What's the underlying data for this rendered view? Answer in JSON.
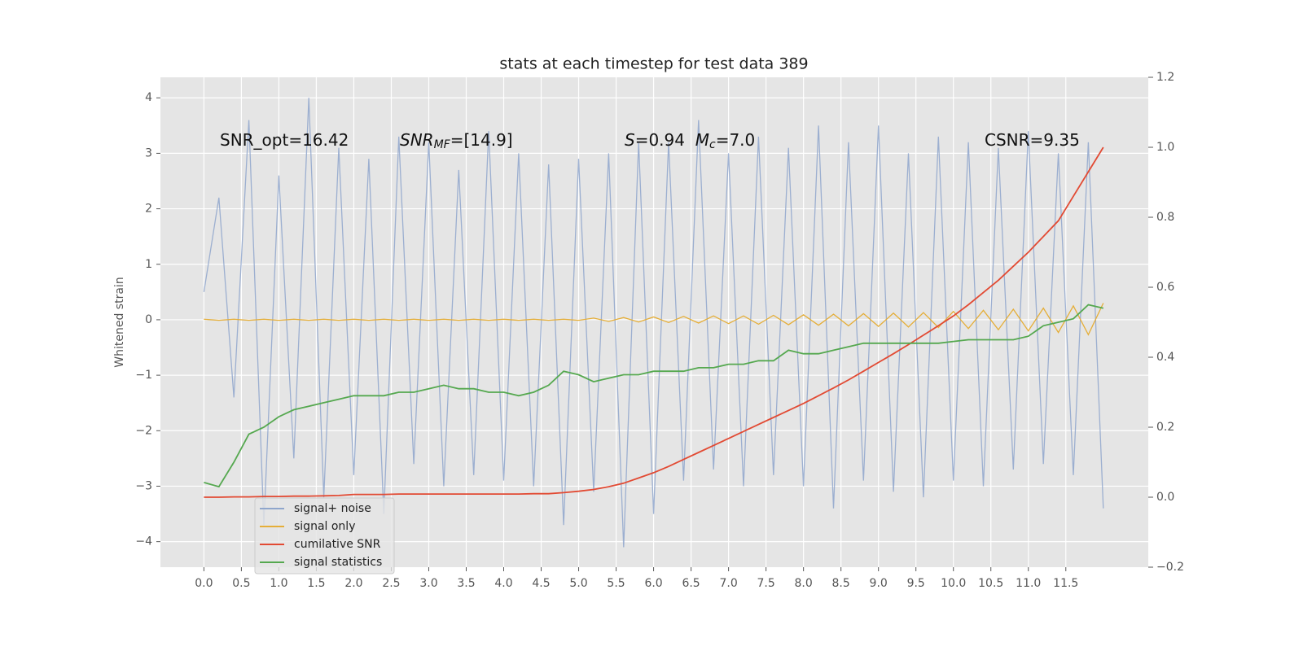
{
  "chart_data": {
    "type": "line",
    "title": "stats at each timestep for test data 389",
    "y_label": "Whitened strain",
    "x": [
      0,
      0.2,
      0.4,
      0.6,
      0.8,
      1.0,
      1.2,
      1.4,
      1.6,
      1.8,
      2.0,
      2.2,
      2.4,
      2.6,
      2.8,
      3.0,
      3.2,
      3.4,
      3.6,
      3.8,
      4.0,
      4.2,
      4.4,
      4.6,
      4.8,
      5.0,
      5.2,
      5.4,
      5.6,
      5.8,
      6.0,
      6.2,
      6.4,
      6.6,
      6.8,
      7.0,
      7.2,
      7.4,
      7.6,
      7.8,
      8.0,
      8.2,
      8.4,
      8.6,
      8.8,
      9.0,
      9.2,
      9.4,
      9.6,
      9.8,
      10.0,
      10.2,
      10.4,
      10.6,
      10.8,
      11.0,
      11.2,
      11.4,
      11.6,
      11.8,
      12.0
    ],
    "series": [
      {
        "name": "signal+ noise",
        "color": "#8fa6cc",
        "values": [
          0.5,
          2.2,
          -1.4,
          3.6,
          -3.7,
          2.6,
          -2.5,
          4.0,
          -3.2,
          3.1,
          -2.8,
          2.9,
          -3.5,
          3.3,
          -2.6,
          3.2,
          -3.0,
          2.7,
          -2.8,
          3.4,
          -2.9,
          3.0,
          -3.0,
          2.8,
          -3.7,
          2.9,
          -3.1,
          3.0,
          -4.1,
          3.2,
          -3.5,
          3.2,
          -2.9,
          3.6,
          -2.7,
          3.0,
          -3.0,
          3.3,
          -2.8,
          3.1,
          -3.0,
          3.5,
          -3.4,
          3.2,
          -2.9,
          3.5,
          -3.1,
          3.0,
          -3.2,
          3.3,
          -2.9,
          3.2,
          -3.0,
          3.1,
          -2.7,
          3.4,
          -2.6,
          3.0,
          -2.8,
          3.2,
          -3.4
        ]
      },
      {
        "name": "signal only",
        "color": "#e5ae38",
        "values": [
          0.01,
          -0.01,
          0.01,
          -0.01,
          0.01,
          -0.01,
          0.01,
          -0.01,
          0.01,
          -0.01,
          0.01,
          -0.01,
          0.01,
          -0.01,
          0.01,
          -0.01,
          0.01,
          -0.01,
          0.01,
          -0.01,
          0.01,
          -0.01,
          0.01,
          -0.01,
          0.01,
          -0.01,
          0.03,
          -0.03,
          0.04,
          -0.04,
          0.05,
          -0.05,
          0.06,
          -0.06,
          0.07,
          -0.07,
          0.07,
          -0.08,
          0.08,
          -0.09,
          0.09,
          -0.1,
          0.1,
          -0.11,
          0.11,
          -0.12,
          0.12,
          -0.13,
          0.13,
          -0.14,
          0.15,
          -0.16,
          0.17,
          -0.18,
          0.19,
          -0.2,
          0.21,
          -0.23,
          0.25,
          -0.27,
          0.3
        ]
      },
      {
        "name": "cumilative SNR",
        "color": "#e24a33",
        "axis": "y2",
        "values": [
          0,
          0,
          0.001,
          0.001,
          0.002,
          0.002,
          0.003,
          0.003,
          0.004,
          0.005,
          0.008,
          0.008,
          0.008,
          0.009,
          0.009,
          0.009,
          0.009,
          0.009,
          0.009,
          0.009,
          0.009,
          0.009,
          0.01,
          0.01,
          0.013,
          0.017,
          0.022,
          0.03,
          0.04,
          0.055,
          0.07,
          0.088,
          0.108,
          0.128,
          0.148,
          0.168,
          0.188,
          0.208,
          0.228,
          0.248,
          0.268,
          0.29,
          0.312,
          0.335,
          0.36,
          0.385,
          0.41,
          0.436,
          0.463,
          0.49,
          0.518,
          0.55,
          0.585,
          0.62,
          0.66,
          0.7,
          0.745,
          0.79,
          0.86,
          0.93,
          1.0
        ]
      },
      {
        "name": "signal statistics",
        "color": "#55a84f",
        "axis": "y2",
        "values": [
          0.042,
          0.03,
          0.1,
          0.18,
          0.2,
          0.23,
          0.25,
          0.26,
          0.27,
          0.28,
          0.29,
          0.29,
          0.29,
          0.3,
          0.3,
          0.31,
          0.32,
          0.31,
          0.31,
          0.3,
          0.3,
          0.29,
          0.3,
          0.32,
          0.36,
          0.35,
          0.33,
          0.34,
          0.35,
          0.35,
          0.36,
          0.36,
          0.36,
          0.37,
          0.37,
          0.38,
          0.38,
          0.39,
          0.39,
          0.42,
          0.41,
          0.41,
          0.42,
          0.43,
          0.44,
          0.44,
          0.44,
          0.44,
          0.44,
          0.44,
          0.445,
          0.45,
          0.45,
          0.45,
          0.45,
          0.46,
          0.49,
          0.5,
          0.51,
          0.55,
          0.54
        ]
      }
    ],
    "xlim": [
      -0.58,
      12.6
    ],
    "xticks": [
      {
        "value": 0,
        "label": "0.0"
      },
      0.5,
      {
        "value": 1,
        "label": "1.0"
      },
      1.5,
      {
        "value": 2,
        "label": "2.0"
      },
      2.5,
      {
        "value": 3,
        "label": "3.0"
      },
      3.5,
      {
        "value": 4,
        "label": "4.0"
      },
      4.5,
      {
        "value": 5,
        "label": "5.0"
      },
      5.5,
      {
        "value": 6,
        "label": "6.0"
      },
      6.5,
      {
        "value": 7,
        "label": "7.0"
      },
      7.5,
      {
        "value": 8,
        "label": "8.0"
      },
      8.5,
      {
        "value": 9,
        "label": "9.0"
      },
      9.5,
      {
        "value": 10,
        "label": "10.0"
      },
      10.5,
      {
        "value": 11,
        "label": "11.0"
      },
      11.5
    ],
    "ylim": [
      -4.46,
      4.37
    ],
    "yticks": [
      {
        "value": -4,
        "label": "−4"
      },
      {
        "value": -3,
        "label": "−3"
      },
      {
        "value": -2,
        "label": "−2"
      },
      {
        "value": -1,
        "label": "−1"
      },
      0,
      1,
      2,
      3,
      4
    ],
    "y2lim": [
      -0.2,
      1.2
    ],
    "y2ticks": [
      {
        "value": -0.2,
        "label": "−0.2"
      },
      {
        "value": 0,
        "label": "0.0"
      },
      0.2,
      0.4,
      0.6,
      0.8,
      {
        "value": 1,
        "label": "1.0"
      },
      1.2
    ],
    "grid": true,
    "legend": "lower left",
    "annotations": [
      {
        "parts": [
          {
            "text": "SNR_opt=16.42"
          }
        ]
      },
      {
        "parts": [
          {
            "text": "SNR",
            "italic": true
          },
          {
            "text": "MF",
            "italic": true,
            "sub": true
          },
          {
            "text": "=[14.9]"
          }
        ]
      },
      {
        "parts": [
          {
            "text": "S",
            "italic": true
          },
          {
            "text": "=0.94  "
          },
          {
            "text": "M",
            "italic": true
          },
          {
            "text": "c",
            "italic": true,
            "sub": true
          },
          {
            "text": "=7.0"
          }
        ]
      },
      {
        "parts": [
          {
            "text": "CSNR=9.35"
          }
        ]
      }
    ]
  }
}
